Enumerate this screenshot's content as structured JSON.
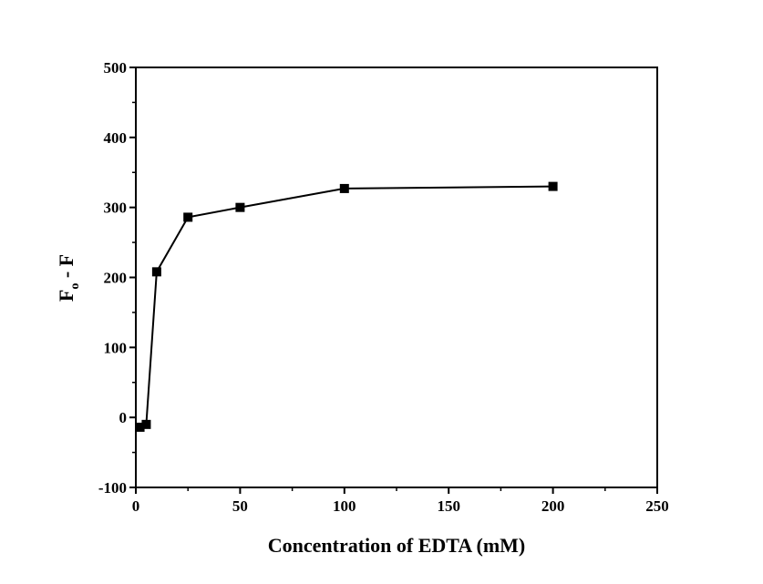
{
  "chart_data": {
    "type": "line",
    "title": "",
    "xlabel": "Concentration of EDTA (mM)",
    "ylabel_main": "F",
    "ylabel_sub": "o",
    "ylabel_rest": " - F",
    "xlim": [
      0,
      250
    ],
    "ylim": [
      -100,
      500
    ],
    "xticks": [
      0,
      50,
      100,
      150,
      200,
      250
    ],
    "yticks": [
      -100,
      0,
      100,
      200,
      300,
      400,
      500
    ],
    "grid": false,
    "series": [
      {
        "name": "Fo - F",
        "marker": "square",
        "color": "#000000",
        "x": [
          2,
          5,
          10,
          25,
          50,
          100,
          200
        ],
        "y": [
          -14,
          -10,
          208,
          286,
          300,
          327,
          330
        ]
      }
    ]
  }
}
